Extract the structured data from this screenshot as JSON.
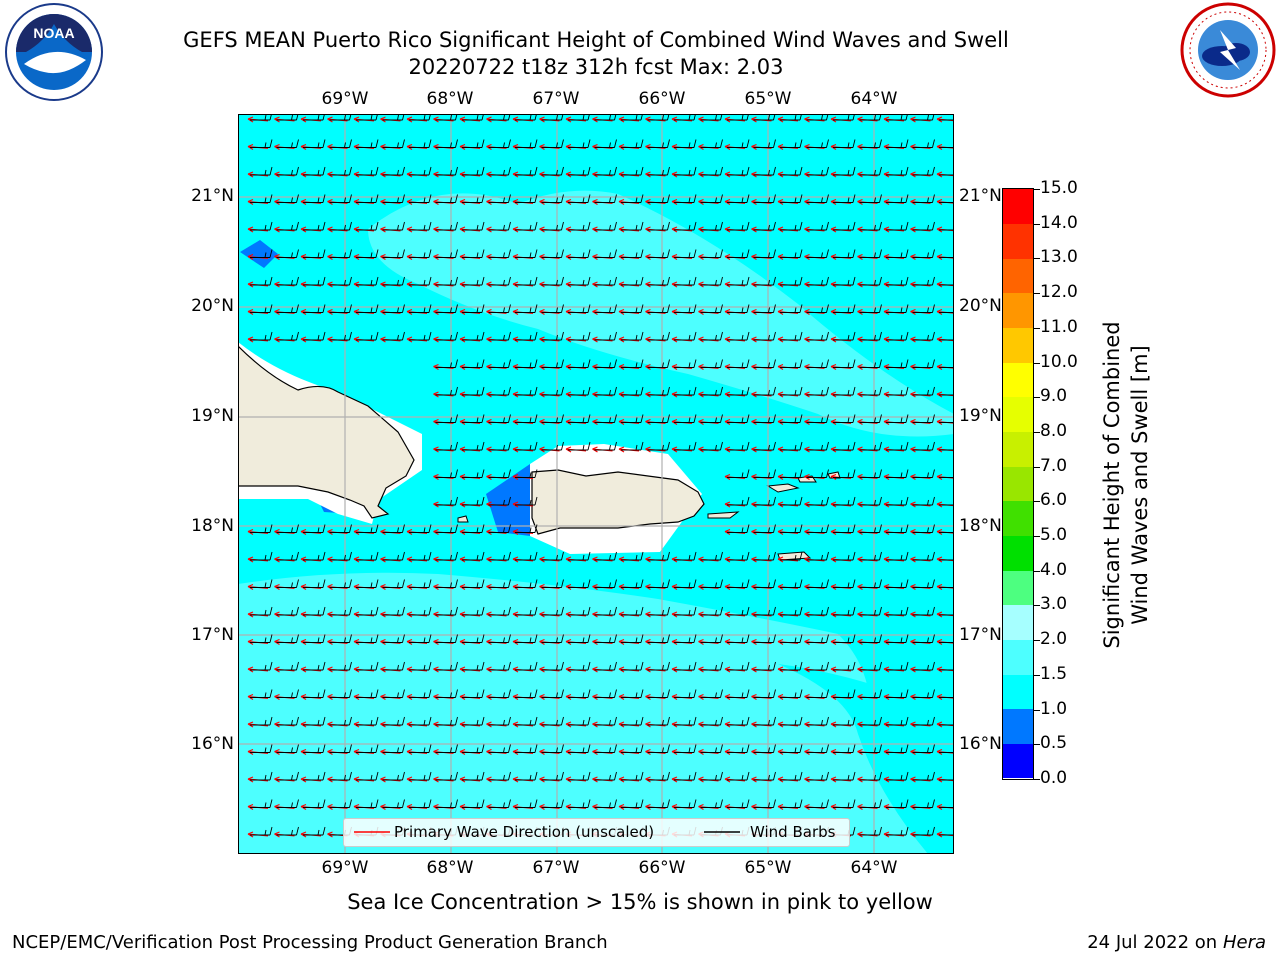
{
  "title_line1": "GEFS MEAN Puerto Rico Significant Height of Combined Wind Waves and Swell",
  "title_line2": "20220722 t18z 312h fcst   Max: 2.03",
  "lon_labels": [
    "69°W",
    "68°W",
    "67°W",
    "66°W",
    "65°W",
    "64°W"
  ],
  "lat_labels": [
    "21°N",
    "20°N",
    "19°N",
    "18°N",
    "17°N",
    "16°N"
  ],
  "legend": {
    "wave_direction": "Primary Wave Direction (unscaled)",
    "wind_barbs": "Wind Barbs",
    "wave_color": "#ff0000",
    "barb_color": "#000000"
  },
  "colorbar": {
    "label_line1": "Significant Height of Combined",
    "label_line2": "Wind Waves and Swell [m]",
    "ticks": [
      "0.0",
      "0.5",
      "1.0",
      "1.5",
      "2.0",
      "3.0",
      "4.0",
      "5.0",
      "6.0",
      "7.0",
      "8.0",
      "9.0",
      "10.0",
      "11.0",
      "12.0",
      "13.0",
      "14.0",
      "15.0"
    ],
    "colors": [
      "#0000ff",
      "#0078ff",
      "#00ffff",
      "#4dffff",
      "#a6ffff",
      "#4dff80",
      "#00e000",
      "#40e000",
      "#99e600",
      "#c8f000",
      "#e6ff00",
      "#ffff00",
      "#ffc800",
      "#ff9600",
      "#ff6400",
      "#ff3200",
      "#ff0000"
    ]
  },
  "sea_ice_note": "Sea Ice Concentration > 15% is shown in pink to yellow",
  "footer_left": "NCEP/EMC/Verification Post Processing Product Generation Branch",
  "footer_right_prefix": "24 Jul 2022 on ",
  "footer_right_machine": "Hera",
  "map_colors": {
    "sea_low": "#00ffff",
    "sea_mid": "#4dffff",
    "shallow": "#0078ff",
    "land": "#f0ecdc",
    "grid": "#b0b0b0"
  }
}
